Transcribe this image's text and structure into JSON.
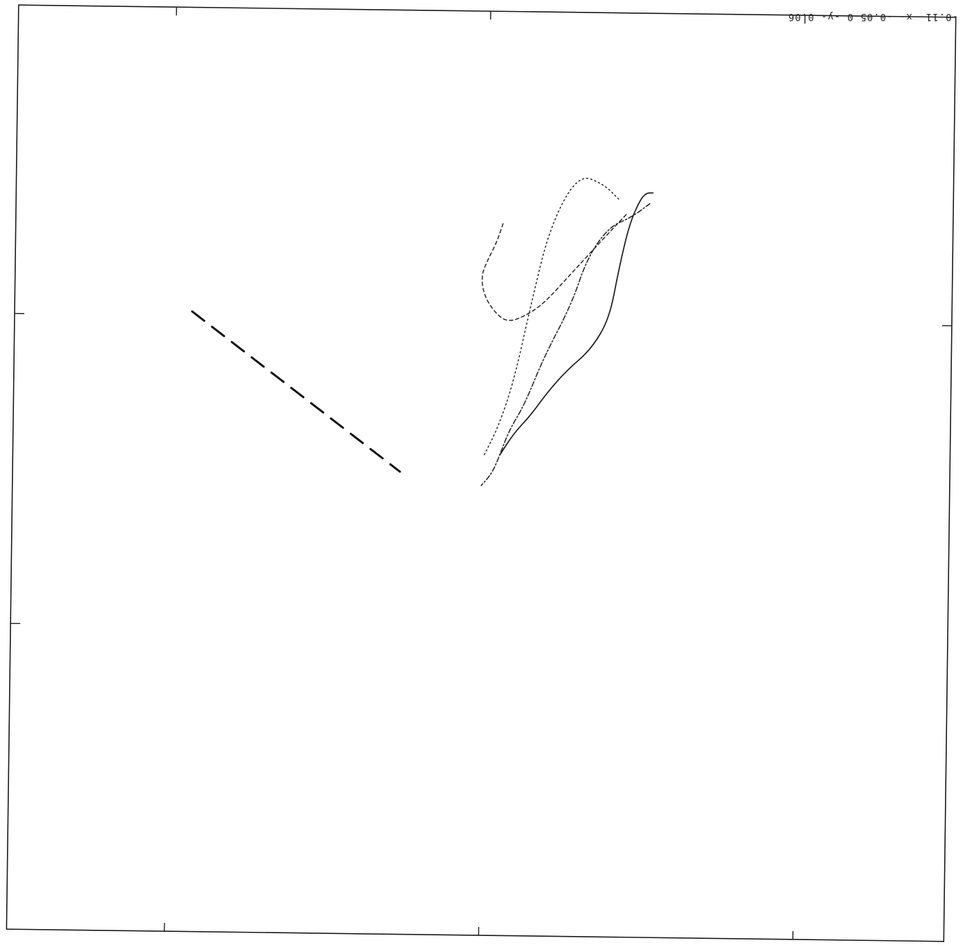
{
  "header": {
    "range_text": "-0.11 -x- -0.05  0 -y- 0.06"
  },
  "chart_data": {
    "type": "line",
    "title": "",
    "xlabel": "",
    "ylabel": "",
    "xlim": [
      -0.11,
      -0.05
    ],
    "ylim": [
      0,
      0.06
    ],
    "grid": false,
    "series": [
      {
        "style": "solid",
        "x": [
          -0.0788,
          -0.0779,
          -0.0768,
          -0.0758,
          -0.0745,
          -0.073,
          -0.0718,
          -0.0712,
          -0.0705,
          -0.0698,
          -0.0694,
          -0.069
        ],
        "y": [
          0.0312,
          0.0326,
          0.0338,
          0.0352,
          0.0367,
          0.038,
          0.04,
          0.0432,
          0.0462,
          0.0478,
          0.0482,
          0.0482
        ]
      },
      {
        "style": "dashdot",
        "x": [
          -0.0692,
          -0.0704,
          -0.0718,
          -0.0732,
          -0.0742,
          -0.076,
          -0.0772,
          -0.0782,
          -0.0788,
          -0.0793,
          -0.08
        ],
        "y": [
          0.0475,
          0.0466,
          0.046,
          0.044,
          0.041,
          0.0375,
          0.0345,
          0.0328,
          0.0312,
          0.03,
          0.0292
        ]
      },
      {
        "style": "dotted",
        "x": [
          -0.0712,
          -0.0722,
          -0.0738,
          -0.0756,
          -0.0768,
          -0.0779,
          -0.0789,
          -0.0798
        ],
        "y": [
          0.0478,
          0.0488,
          0.0494,
          0.046,
          0.041,
          0.036,
          0.033,
          0.0312
        ]
      },
      {
        "style": "dashed",
        "x": [
          -0.0786,
          -0.079,
          -0.0796,
          -0.08,
          -0.0798,
          -0.0791,
          -0.0783,
          -0.0772,
          -0.076,
          -0.0742,
          -0.0722,
          -0.0707
        ],
        "y": [
          0.0462,
          0.045,
          0.0438,
          0.0428,
          0.0415,
          0.0404,
          0.0398,
          0.0402,
          0.041,
          0.043,
          0.0452,
          0.0468
        ]
      },
      {
        "style": "axis",
        "x": [
          -0.0985,
          -0.0852
        ],
        "y": [
          0.0405,
          0.0301
        ]
      }
    ]
  },
  "colors": {
    "background": "#ffffff",
    "ink": "#1a1a1a"
  }
}
